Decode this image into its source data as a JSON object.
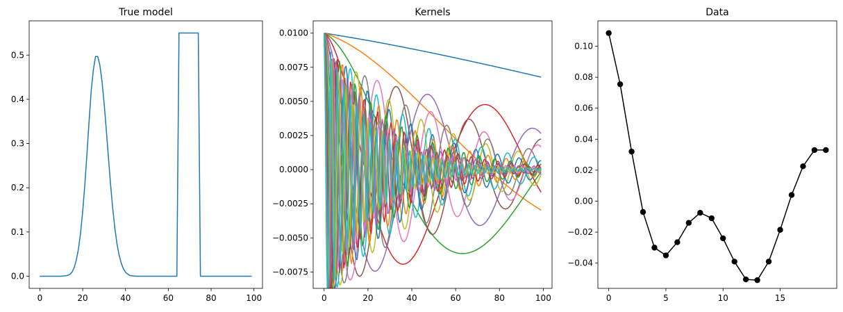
{
  "chart_data": [
    {
      "type": "line",
      "title": "True model",
      "xlabel": "",
      "ylabel": "",
      "xlim": [
        -5,
        104
      ],
      "ylim": [
        -0.0275,
        0.5775
      ],
      "xticks": [
        0,
        20,
        40,
        60,
        80,
        100
      ],
      "xtick_labels": [
        "0",
        "20",
        "40",
        "60",
        "80",
        "100"
      ],
      "yticks": [
        0.0,
        0.1,
        0.2,
        0.3,
        0.4,
        0.5
      ],
      "ytick_labels": [
        "0.0",
        "0.1",
        "0.2",
        "0.3",
        "0.4",
        "0.5"
      ],
      "grid": false,
      "color": "#1f77b4",
      "x": [
        0,
        1,
        2,
        3,
        4,
        5,
        6,
        7,
        8,
        9,
        10,
        11,
        12,
        13,
        14,
        15,
        16,
        17,
        18,
        19,
        20,
        21,
        22,
        23,
        24,
        25,
        26,
        27,
        28,
        29,
        30,
        31,
        32,
        33,
        34,
        35,
        36,
        37,
        38,
        39,
        40,
        41,
        42,
        43,
        44,
        45,
        46,
        47,
        48,
        49,
        50,
        51,
        52,
        53,
        54,
        55,
        56,
        57,
        58,
        59,
        60,
        61,
        62,
        63,
        64,
        65,
        66,
        67,
        68,
        69,
        70,
        71,
        72,
        73,
        74,
        75,
        76,
        77,
        78,
        79,
        80,
        81,
        82,
        83,
        84,
        85,
        86,
        87,
        88,
        89,
        90,
        91,
        92,
        93,
        94,
        95,
        96,
        97,
        98,
        99
      ],
      "y": [
        0.0,
        0.0,
        0.0,
        0.0,
        0.0,
        0.0,
        0.0,
        0.0,
        0.0,
        0.0,
        0.0,
        0.0005,
        0.001,
        0.002,
        0.004,
        0.009,
        0.019,
        0.036,
        0.061,
        0.097,
        0.146,
        0.207,
        0.277,
        0.351,
        0.42,
        0.467,
        0.497,
        0.497,
        0.478,
        0.442,
        0.392,
        0.333,
        0.27,
        0.209,
        0.155,
        0.11,
        0.074,
        0.048,
        0.03,
        0.017,
        0.009,
        0.005,
        0.002,
        0.001,
        0.0005,
        0.0,
        0.0,
        0.0,
        0.0,
        0.0,
        0.0,
        0.0,
        0.0,
        0.0,
        0.0,
        0.0,
        0.0,
        0.0,
        0.0,
        0.0,
        0.0,
        0.0,
        0.0,
        0.0,
        0.0,
        0.55,
        0.55,
        0.55,
        0.55,
        0.55,
        0.55,
        0.55,
        0.55,
        0.55,
        0.55,
        0.0,
        0.0,
        0.0,
        0.0,
        0.0,
        0.0,
        0.0,
        0.0,
        0.0,
        0.0,
        0.0,
        0.0,
        0.0,
        0.0,
        0.0,
        0.0,
        0.0,
        0.0,
        0.0,
        0.0,
        0.0,
        0.0,
        0.0,
        0.0,
        0.0
      ]
    },
    {
      "type": "line",
      "title": "Kernels",
      "xlabel": "",
      "ylabel": "",
      "xlim": [
        -5,
        104
      ],
      "ylim": [
        -0.0087,
        0.0109
      ],
      "xticks": [
        0,
        20,
        40,
        60,
        80,
        100
      ],
      "xtick_labels": [
        "0",
        "20",
        "40",
        "60",
        "80",
        "100"
      ],
      "yticks": [
        -0.0075,
        -0.005,
        -0.0025,
        0.0,
        0.0025,
        0.005,
        0.0075,
        0.01
      ],
      "ytick_labels": [
        "−0.0075",
        "−0.0050",
        "−0.0025",
        "0.0000",
        "0.0025",
        "0.0050",
        "0.0075",
        "0.0100"
      ],
      "grid": false,
      "x_range": [
        0,
        99
      ],
      "kernel_formula": "0.01 * exp(-0.0025 * k * x) * cos(0.00525 * k^2 * x)",
      "kernel_indices": [
        1,
        2,
        3,
        4,
        5,
        6,
        7,
        8,
        9,
        10,
        11,
        12,
        13,
        14,
        15,
        16,
        17,
        18,
        19,
        20
      ],
      "colors": [
        "#1f77b4",
        "#ff7f0e",
        "#2ca02c",
        "#d62728",
        "#9467bd",
        "#8c564b",
        "#e377c2",
        "#7f7f7f",
        "#bcbd22",
        "#17becf",
        "#1f77b4",
        "#ff7f0e",
        "#2ca02c",
        "#d62728",
        "#9467bd",
        "#8c564b",
        "#e377c2",
        "#7f7f7f",
        "#bcbd22",
        "#17becf"
      ]
    },
    {
      "type": "line",
      "title": "Data",
      "xlabel": "",
      "ylabel": "",
      "xlim": [
        -0.95,
        19.95
      ],
      "ylim": [
        -0.0563,
        0.1164
      ],
      "xticks": [
        0,
        5,
        10,
        15
      ],
      "xtick_labels": [
        "0",
        "5",
        "10",
        "15"
      ],
      "yticks": [
        -0.04,
        -0.02,
        0.0,
        0.02,
        0.04,
        0.06,
        0.08,
        0.1
      ],
      "ytick_labels": [
        "−0.04",
        "−0.02",
        "0.00",
        "0.02",
        "0.04",
        "0.06",
        "0.08",
        "0.10"
      ],
      "grid": false,
      "color": "#000000",
      "marker": "circle",
      "x": [
        0,
        1,
        2,
        3,
        4,
        5,
        6,
        7,
        8,
        9,
        10,
        11,
        12,
        13,
        14,
        15,
        16,
        17,
        18,
        19
      ],
      "y": [
        0.1085,
        0.0755,
        0.032,
        -0.007,
        -0.03,
        -0.035,
        -0.0265,
        -0.014,
        -0.0075,
        -0.011,
        -0.024,
        -0.039,
        -0.0505,
        -0.051,
        -0.039,
        -0.0185,
        0.004,
        0.0225,
        0.033,
        0.033
      ]
    }
  ]
}
